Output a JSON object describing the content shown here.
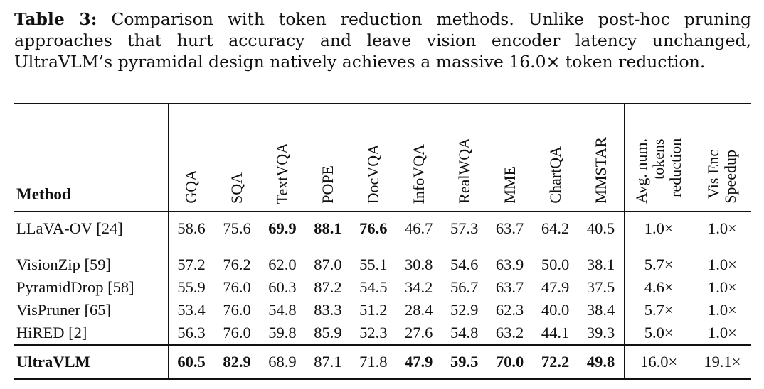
{
  "caption": {
    "label": "Table 3:",
    "text": " Comparison with token reduction methods. Unlike post-hoc pruning approaches that hurt accuracy and leave vision encoder latency unchanged, UltraVLM’s pyramidal design natively achieves a massive 16.0× token reduction."
  },
  "table": {
    "method_header": "Method",
    "columns": [
      "GQA",
      "SQA",
      "TextVQA",
      "POPE",
      "DocVQA",
      "InfoVQA",
      "RealWQA",
      "MME",
      "ChartQA",
      "MMSTAR"
    ],
    "extra_columns": [
      "Avg. num.\ntokens\nreduction",
      "Vis Enc\nSpeedup"
    ],
    "rows": [
      {
        "method": "LLaVA-OV [24]",
        "values": [
          "58.6",
          "75.6",
          "69.9",
          "88.1",
          "76.6",
          "46.7",
          "57.3",
          "63.7",
          "64.2",
          "40.5"
        ],
        "bold": [
          false,
          false,
          true,
          true,
          true,
          false,
          false,
          false,
          false,
          false
        ],
        "reduction": "1.0×",
        "speedup": "1.0×"
      },
      {
        "method": "VisionZip [59]",
        "values": [
          "57.2",
          "76.2",
          "62.0",
          "87.0",
          "55.1",
          "30.8",
          "54.6",
          "63.9",
          "50.0",
          "38.1"
        ],
        "bold": [
          false,
          false,
          false,
          false,
          false,
          false,
          false,
          false,
          false,
          false
        ],
        "reduction": "5.7×",
        "speedup": "1.0×"
      },
      {
        "method": "PyramidDrop [58]",
        "values": [
          "55.9",
          "76.0",
          "60.3",
          "87.2",
          "54.5",
          "34.2",
          "56.7",
          "63.7",
          "47.9",
          "37.5"
        ],
        "bold": [
          false,
          false,
          false,
          false,
          false,
          false,
          false,
          false,
          false,
          false
        ],
        "reduction": "4.6×",
        "speedup": "1.0×"
      },
      {
        "method": "VisPruner [65]",
        "values": [
          "53.4",
          "76.0",
          "54.8",
          "83.3",
          "51.2",
          "28.4",
          "52.9",
          "62.3",
          "40.0",
          "38.4"
        ],
        "bold": [
          false,
          false,
          false,
          false,
          false,
          false,
          false,
          false,
          false,
          false
        ],
        "reduction": "5.7×",
        "speedup": "1.0×"
      },
      {
        "method": "HiRED [2]",
        "values": [
          "56.3",
          "76.0",
          "59.8",
          "85.9",
          "52.3",
          "27.6",
          "54.8",
          "63.2",
          "44.1",
          "39.3"
        ],
        "bold": [
          false,
          false,
          false,
          false,
          false,
          false,
          false,
          false,
          false,
          false
        ],
        "reduction": "5.0×",
        "speedup": "1.0×"
      },
      {
        "method": "UltraVLM",
        "method_bold": true,
        "values": [
          "60.5",
          "82.9",
          "68.9",
          "87.1",
          "71.8",
          "47.9",
          "59.5",
          "70.0",
          "72.2",
          "49.8"
        ],
        "bold": [
          true,
          true,
          false,
          false,
          false,
          true,
          true,
          true,
          true,
          true
        ],
        "reduction": "16.0×",
        "speedup": "19.1×"
      }
    ]
  }
}
